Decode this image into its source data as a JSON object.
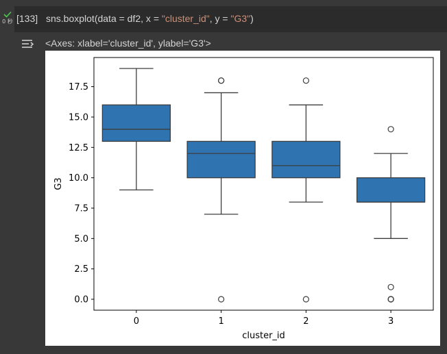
{
  "cell": {
    "execution_count": "[133]",
    "run_time": "0 秒",
    "status_icon": "check-icon",
    "code_prefix": "sns.boxplot(data = df2, x = ",
    "code_x_str": "\"cluster_id\"",
    "code_mid": ", y = ",
    "code_y_str": "\"G3\"",
    "code_suffix": ")"
  },
  "output": {
    "icon": "output-collapse-icon",
    "repr_text": "<Axes: xlabel='cluster_id', ylabel='G3'>"
  },
  "colors": {
    "box_fill": "#2f74b0",
    "line": "#3d3d3d",
    "string_token": "#ce9178"
  },
  "chart_data": {
    "type": "boxplot",
    "xlabel": "cluster_id",
    "ylabel": "G3",
    "ylim": [
      -0.9,
      19.9
    ],
    "yticks": [
      0.0,
      2.5,
      5.0,
      7.5,
      10.0,
      12.5,
      15.0,
      17.5
    ],
    "ytick_labels": [
      "0.0",
      "2.5",
      "5.0",
      "7.5",
      "10.0",
      "12.5",
      "15.0",
      "17.5"
    ],
    "categories": [
      "0",
      "1",
      "2",
      "3"
    ],
    "boxes": [
      {
        "category": "0",
        "whisker_low": 9,
        "q1": 13,
        "median": 14,
        "q3": 16,
        "whisker_high": 19,
        "outliers": []
      },
      {
        "category": "1",
        "whisker_low": 7,
        "q1": 10,
        "median": 12,
        "q3": 13,
        "whisker_high": 17,
        "outliers": [
          0,
          18,
          18
        ]
      },
      {
        "category": "2",
        "whisker_low": 8,
        "q1": 10,
        "median": 11,
        "q3": 13,
        "whisker_high": 16,
        "outliers": [
          0,
          18
        ]
      },
      {
        "category": "3",
        "whisker_low": 5,
        "q1": 8,
        "median": 8,
        "q3": 10,
        "whisker_high": 12,
        "outliers": [
          0,
          0,
          0,
          1,
          14
        ]
      }
    ]
  }
}
